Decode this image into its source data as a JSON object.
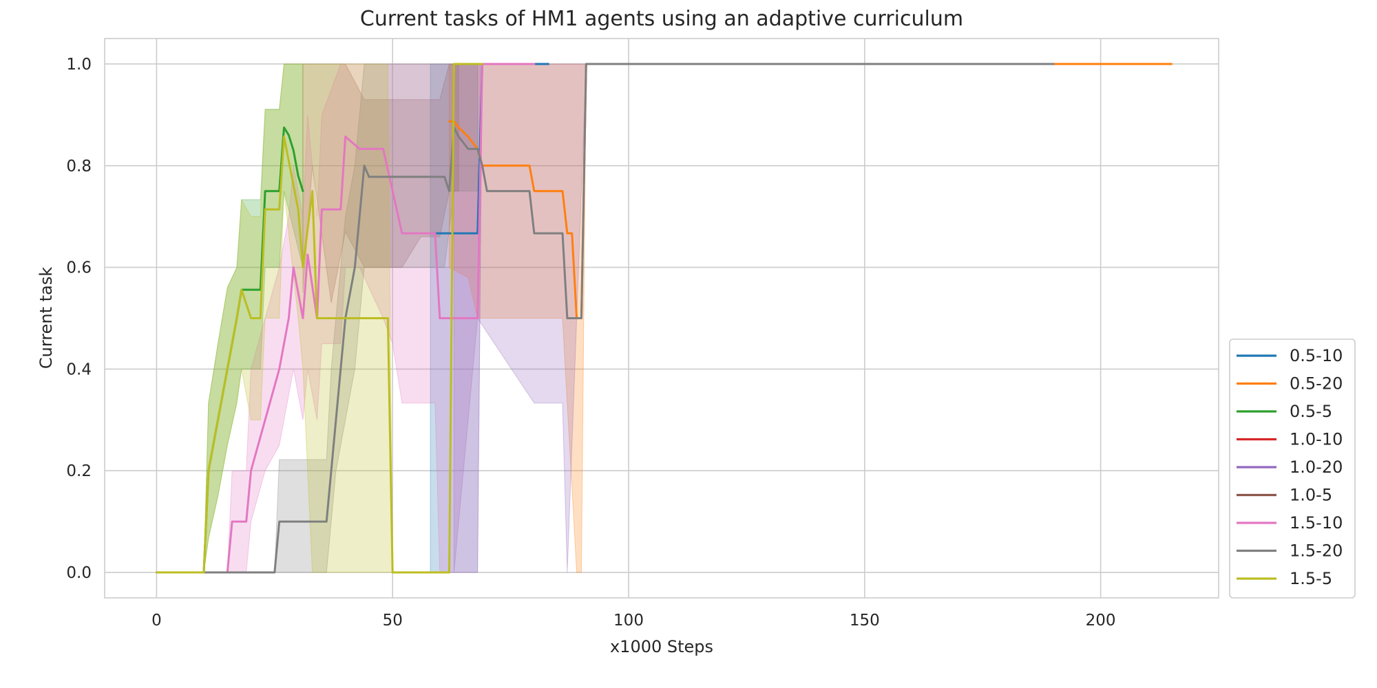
{
  "chart_data": {
    "type": "line",
    "title": "Current tasks of HM1 agents using an adaptive curriculum",
    "xlabel": "x1000 Steps",
    "ylabel": "Current task",
    "xlim": [
      -11,
      225
    ],
    "ylim": [
      -0.05,
      1.05
    ],
    "xticks": [
      0,
      50,
      100,
      150,
      200
    ],
    "yticks": [
      0.0,
      0.2,
      0.4,
      0.6,
      0.8,
      1.0
    ],
    "grid": true,
    "legend_position": "lower-right-outside",
    "series": [
      {
        "name": "0.5-10",
        "color": "#1f77b4",
        "points": [
          [
            58,
            0.667
          ],
          [
            68,
            0.667
          ],
          [
            69,
            1.0
          ],
          [
            83,
            1.0
          ]
        ],
        "band": [
          [
            58,
            0.0,
            1.0
          ],
          [
            68,
            0.0,
            1.0
          ],
          [
            69,
            1.0,
            1.0
          ],
          [
            83,
            1.0,
            1.0
          ]
        ]
      },
      {
        "name": "0.5-20",
        "color": "#ff7f0e",
        "points": [
          [
            62,
            0.887
          ],
          [
            63,
            0.887
          ],
          [
            64,
            0.875
          ],
          [
            66,
            0.857
          ],
          [
            68,
            0.833
          ],
          [
            69,
            0.8
          ],
          [
            79,
            0.8
          ],
          [
            80,
            0.75
          ],
          [
            86,
            0.75
          ],
          [
            87,
            0.667
          ],
          [
            88,
            0.667
          ],
          [
            89,
            0.5
          ],
          [
            90,
            0.5
          ],
          [
            91,
            1.0
          ],
          [
            215,
            1.0
          ]
        ],
        "band": [
          [
            62,
            0.6,
            1.0
          ],
          [
            66,
            0.58,
            1.0
          ],
          [
            68,
            0.5,
            1.0
          ],
          [
            73,
            0.5,
            1.0
          ],
          [
            79,
            0.5,
            1.0
          ],
          [
            80,
            0.5,
            1.0
          ],
          [
            86,
            0.5,
            1.0
          ],
          [
            87,
            0.333,
            1.0
          ],
          [
            89,
            0.0,
            1.0
          ],
          [
            90,
            0.0,
            1.0
          ],
          [
            91,
            1.0,
            1.0
          ],
          [
            215,
            1.0,
            1.0
          ]
        ]
      },
      {
        "name": "0.5-5",
        "color": "#2ca02c",
        "points": [
          [
            0,
            0.0
          ],
          [
            10,
            0.0
          ],
          [
            11,
            0.2
          ],
          [
            13,
            0.3
          ],
          [
            15,
            0.4
          ],
          [
            17,
            0.5
          ],
          [
            18,
            0.556
          ],
          [
            22,
            0.556
          ],
          [
            23,
            0.75
          ],
          [
            26,
            0.75
          ],
          [
            27,
            0.875
          ],
          [
            28,
            0.86
          ],
          [
            29,
            0.83
          ],
          [
            30,
            0.78
          ],
          [
            31,
            0.75
          ]
        ],
        "band": [
          [
            0,
            0.0,
            0.0
          ],
          [
            10,
            0.0,
            0.0
          ],
          [
            11,
            0.067,
            0.333
          ],
          [
            13,
            0.15,
            0.45
          ],
          [
            15,
            0.25,
            0.56
          ],
          [
            17,
            0.333,
            0.6
          ],
          [
            18,
            0.4,
            0.733
          ],
          [
            22,
            0.4,
            0.733
          ],
          [
            23,
            0.6,
            0.911
          ],
          [
            26,
            0.6,
            0.911
          ],
          [
            27,
            0.75,
            1.0
          ],
          [
            31,
            0.6,
            1.0
          ]
        ]
      },
      {
        "name": "1.0-10",
        "color": "#d62728",
        "points": [],
        "band": []
      },
      {
        "name": "1.0-20",
        "color": "#9467bd",
        "points": [],
        "band": [
          [
            63,
            0.0,
            1.0
          ],
          [
            68,
            0.5,
            1.0
          ],
          [
            80,
            0.333,
            1.0
          ],
          [
            86,
            0.333,
            1.0
          ],
          [
            87,
            0.0,
            1.0
          ],
          [
            91,
            1.0,
            1.0
          ]
        ]
      },
      {
        "name": "1.0-5",
        "color": "#8c564b",
        "points": [],
        "band": [
          [
            31,
            0.55,
            1.0
          ],
          [
            33,
            0.8,
            1.0
          ],
          [
            37,
            0.53,
            1.0
          ],
          [
            40,
            0.67,
            1.0
          ],
          [
            44,
            0.6,
            0.93
          ],
          [
            48,
            0.6,
            0.93
          ],
          [
            52,
            0.6,
            0.93
          ],
          [
            56,
            0.66,
            0.93
          ],
          [
            60,
            0.66,
            0.93
          ],
          [
            62,
            0.75,
            1.0
          ],
          [
            64,
            0.75,
            1.0
          ]
        ]
      },
      {
        "name": "1.5-10",
        "color": "#e377c2",
        "points": [
          [
            0,
            0.0
          ],
          [
            15,
            0.0
          ],
          [
            16,
            0.1
          ],
          [
            19,
            0.1
          ],
          [
            20,
            0.2
          ],
          [
            23,
            0.3
          ],
          [
            26,
            0.4
          ],
          [
            28,
            0.5
          ],
          [
            29,
            0.6
          ],
          [
            31,
            0.5
          ],
          [
            32,
            0.625
          ],
          [
            34,
            0.5
          ],
          [
            35,
            0.714
          ],
          [
            39,
            0.714
          ],
          [
            40,
            0.857
          ],
          [
            43,
            0.833
          ],
          [
            48,
            0.833
          ],
          [
            50,
            0.75
          ],
          [
            52,
            0.667
          ],
          [
            59,
            0.667
          ],
          [
            60,
            0.5
          ],
          [
            68,
            0.5
          ],
          [
            69,
            1.0
          ],
          [
            80,
            1.0
          ]
        ],
        "band": [
          [
            15,
            0.0,
            0.0
          ],
          [
            16,
            0.0,
            0.2
          ],
          [
            19,
            0.0,
            0.2
          ],
          [
            20,
            0.1,
            0.4
          ],
          [
            23,
            0.2,
            0.5
          ],
          [
            26,
            0.25,
            0.6
          ],
          [
            28,
            0.35,
            0.7
          ],
          [
            29,
            0.4,
            0.8
          ],
          [
            31,
            0.3,
            0.7
          ],
          [
            32,
            0.4,
            0.9
          ],
          [
            34,
            0.3,
            0.7
          ],
          [
            35,
            0.45,
            0.9
          ],
          [
            39,
            0.45,
            1.0
          ],
          [
            40,
            0.6,
            1.0
          ],
          [
            43,
            0.6,
            1.0
          ],
          [
            48,
            0.5,
            1.0
          ],
          [
            50,
            0.45,
            1.0
          ],
          [
            52,
            0.333,
            1.0
          ],
          [
            59,
            0.333,
            1.0
          ],
          [
            60,
            0.0,
            1.0
          ],
          [
            68,
            0.0,
            1.0
          ],
          [
            69,
            1.0,
            1.0
          ],
          [
            80,
            1.0,
            1.0
          ]
        ]
      },
      {
        "name": "1.5-20",
        "color": "#7f7f7f",
        "points": [
          [
            0,
            0.0
          ],
          [
            25,
            0.0
          ],
          [
            26,
            0.1
          ],
          [
            36,
            0.1
          ],
          [
            37,
            0.2
          ],
          [
            38,
            0.3
          ],
          [
            40,
            0.5
          ],
          [
            42,
            0.6
          ],
          [
            43,
            0.7
          ],
          [
            44,
            0.8
          ],
          [
            45,
            0.778
          ],
          [
            61,
            0.778
          ],
          [
            62,
            0.75
          ],
          [
            63,
            0.875
          ],
          [
            64,
            0.857
          ],
          [
            66,
            0.833
          ],
          [
            68,
            0.833
          ],
          [
            69,
            0.8
          ],
          [
            70,
            0.75
          ],
          [
            79,
            0.75
          ],
          [
            80,
            0.667
          ],
          [
            86,
            0.667
          ],
          [
            87,
            0.5
          ],
          [
            90,
            0.5
          ],
          [
            91,
            1.0
          ],
          [
            190,
            1.0
          ]
        ],
        "band": [
          [
            25,
            0.0,
            0.0
          ],
          [
            26,
            0.0,
            0.222
          ],
          [
            36,
            0.0,
            0.222
          ],
          [
            37,
            0.1,
            0.4
          ],
          [
            38,
            0.2,
            0.5
          ],
          [
            40,
            0.3,
            0.7
          ],
          [
            42,
            0.4,
            0.8
          ],
          [
            44,
            0.6,
            1.0
          ],
          [
            46,
            0.6,
            1.0
          ],
          [
            61,
            0.6,
            1.0
          ],
          [
            63,
            0.75,
            1.0
          ],
          [
            68,
            0.75,
            1.0
          ]
        ]
      },
      {
        "name": "1.5-5",
        "color": "#bcbd22",
        "points": [
          [
            0,
            0.0
          ],
          [
            10,
            0.0
          ],
          [
            11,
            0.2
          ],
          [
            13,
            0.3
          ],
          [
            15,
            0.4
          ],
          [
            17,
            0.5
          ],
          [
            18,
            0.556
          ],
          [
            20,
            0.5
          ],
          [
            22,
            0.5
          ],
          [
            23,
            0.714
          ],
          [
            26,
            0.714
          ],
          [
            27,
            0.857
          ],
          [
            30,
            0.714
          ],
          [
            31,
            0.6
          ],
          [
            33,
            0.75
          ],
          [
            34,
            0.5
          ],
          [
            49,
            0.5
          ],
          [
            50,
            0.0
          ],
          [
            62,
            0.0
          ],
          [
            63,
            1.0
          ],
          [
            69,
            1.0
          ]
        ],
        "band": [
          [
            0,
            0.0,
            0.0
          ],
          [
            10,
            0.0,
            0.0
          ],
          [
            11,
            0.067,
            0.333
          ],
          [
            13,
            0.15,
            0.45
          ],
          [
            15,
            0.25,
            0.56
          ],
          [
            17,
            0.333,
            0.6
          ],
          [
            18,
            0.4,
            0.733
          ],
          [
            20,
            0.3,
            0.7
          ],
          [
            22,
            0.3,
            0.7
          ],
          [
            23,
            0.5,
            0.91
          ],
          [
            26,
            0.5,
            0.91
          ],
          [
            27,
            0.75,
            1.0
          ],
          [
            30,
            0.5,
            1.0
          ],
          [
            31,
            0.4,
            1.0
          ],
          [
            33,
            0.0,
            1.0
          ],
          [
            34,
            0.0,
            1.0
          ],
          [
            49,
            0.0,
            1.0
          ],
          [
            50,
            0.0,
            0.0
          ],
          [
            62,
            0.0,
            0.0
          ],
          [
            63,
            1.0,
            1.0
          ],
          [
            69,
            1.0,
            1.0
          ]
        ]
      }
    ]
  }
}
